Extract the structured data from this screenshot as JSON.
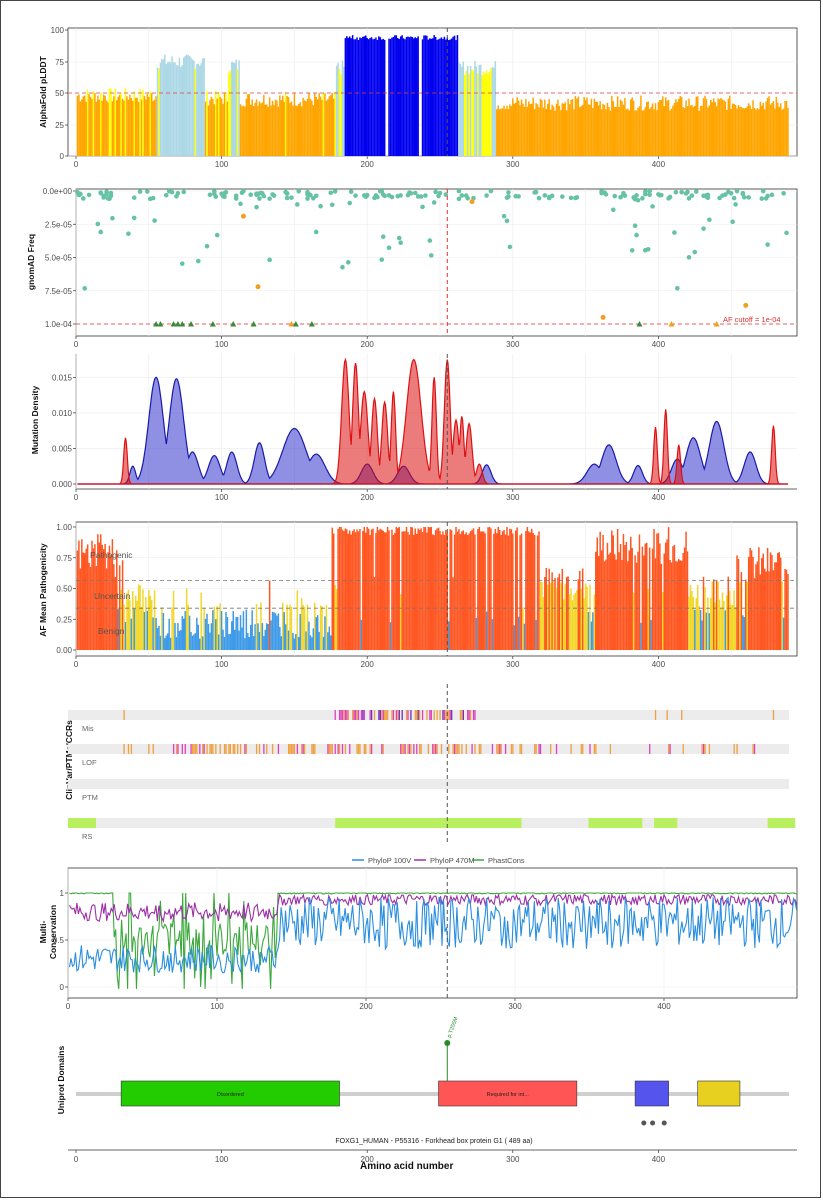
{
  "panels": {
    "plddt": {
      "ylabel": "AlphaFold pLDDT",
      "yticks": [
        "0",
        "25",
        "50",
        "75",
        "100"
      ],
      "ylim": [
        0,
        100
      ],
      "threshold": 50,
      "colors": {
        "very_high": "#0000ee",
        "confident": "#add8e6",
        "low": "#ffff00",
        "very_low": "#ffa500"
      }
    },
    "gnomad": {
      "ylabel": "gnomAD Freq",
      "yticks": [
        "0.0e+00",
        "2.5e-05",
        "5.0e-05",
        "7.5e-05",
        "1.0e-04"
      ],
      "cutoff_label": "AF cutoff = 1e-04",
      "colors": {
        "point": "#66c2a5",
        "highlight": "#f0a020",
        "triangle": "#3a8a3a",
        "cutoff": "#e03030"
      }
    },
    "density": {
      "ylabel": "Mutation Density",
      "yticks": [
        "0.000",
        "0.005",
        "0.010",
        "0.015"
      ],
      "ylim": [
        0,
        0.018
      ],
      "colors": {
        "blue": "#3333cc",
        "red": "#dd1111"
      }
    },
    "pathogenicity": {
      "ylabel": "AF Mean Pathogenicity",
      "yticks": [
        "0.00",
        "0.25",
        "0.50",
        "0.75",
        "1.00"
      ],
      "labels": [
        "Pathogenic",
        "Uncertain",
        "Benign"
      ],
      "thresholds": [
        0.34,
        0.564
      ],
      "colors": {
        "pathogenic": "#ff5722",
        "uncertain": "#f2d72a",
        "benign": "#3f9be8"
      }
    },
    "clinvar": {
      "ylabel": "ClinVar/PTMs/CCRs",
      "rows": [
        "Mis",
        "LOF",
        "PTM",
        "RS"
      ],
      "colors": {
        "orange": "#f0a040",
        "magenta": "#e040c0",
        "purple": "#7030c0",
        "green": "#b8f060"
      }
    },
    "conservation": {
      "ylabel_line1": "Multi-",
      "ylabel_line2": "Conservation",
      "yticks": [
        "0",
        "0.5",
        "1"
      ],
      "legend": [
        "PhyloP 100V",
        "PhyloP 470M",
        "PhastCons"
      ],
      "colors": {
        "phylop100": "#2b8fde",
        "phylop470": "#9b30a8",
        "phastcons": "#3aa83a"
      }
    },
    "domains": {
      "ylabel": "Uniprot Domains",
      "domain_labels": [
        "Disordered",
        "Required for int..."
      ],
      "variant_label": "p.T255M",
      "caption": "FOXG1_HUMAN - P55316 - Forkhead box protein G1 ( 489 aa)",
      "colors": {
        "disordered": "#22cc00",
        "required": "#ff5555",
        "blue_box": "#5555ee",
        "yellow_box": "#e8d020"
      }
    }
  },
  "x_axis": {
    "title": "Amino acid number",
    "ticks": [
      "0",
      "100",
      "200",
      "300",
      "400"
    ],
    "xlim": [
      -5,
      494
    ]
  },
  "chart_data": [
    {
      "type": "bar",
      "title": "",
      "ylabel": "AlphaFold pLDDT",
      "x_range": [
        1,
        489
      ],
      "ylim": [
        0,
        100
      ],
      "segments": [
        {
          "start": 1,
          "end": 55,
          "mean": 48
        },
        {
          "start": 56,
          "end": 88,
          "mean": 75
        },
        {
          "start": 89,
          "end": 104,
          "mean": 46
        },
        {
          "start": 105,
          "end": 112,
          "mean": 72
        },
        {
          "start": 113,
          "end": 178,
          "mean": 45
        },
        {
          "start": 179,
          "end": 184,
          "mean": 70
        },
        {
          "start": 185,
          "end": 262,
          "mean": 93
        },
        {
          "start": 263,
          "end": 288,
          "mean": 70
        },
        {
          "start": 289,
          "end": 489,
          "mean": 42
        }
      ],
      "reference_line": 50
    },
    {
      "type": "scatter",
      "ylabel": "gnomAD Freq",
      "ylim": [
        0.0,
        0.0001
      ],
      "y_reversed": true,
      "cutoff": 0.0001,
      "highlighted": [
        {
          "x": 115,
          "y": 1.9e-05
        },
        {
          "x": 125,
          "y": 7.2e-05
        },
        {
          "x": 272,
          "y": 8e-06
        },
        {
          "x": 362,
          "y": 9.5e-05
        },
        {
          "x": 460,
          "y": 8.6e-05
        }
      ],
      "triangles": [
        {
          "x": 55,
          "y": 0.0001
        },
        {
          "x": 58,
          "y": 0.0001
        },
        {
          "x": 67,
          "y": 0.0001
        },
        {
          "x": 70,
          "y": 0.0001
        },
        {
          "x": 73,
          "y": 0.0001
        },
        {
          "x": 79,
          "y": 0.0001
        },
        {
          "x": 94,
          "y": 0.0001
        },
        {
          "x": 108,
          "y": 0.0001
        },
        {
          "x": 122,
          "y": 0.0001
        },
        {
          "x": 148,
          "y": 0.0001
        },
        {
          "x": 151,
          "y": 0.0001
        },
        {
          "x": 162,
          "y": 0.0001
        },
        {
          "x": 387,
          "y": 0.0001
        },
        {
          "x": 409,
          "y": 0.0001
        },
        {
          "x": 440,
          "y": 0.0001
        }
      ],
      "variant_x": 255
    },
    {
      "type": "area",
      "ylabel": "Mutation Density",
      "ylim": [
        0,
        0.018
      ],
      "series": [
        {
          "peaks": [
            [
              39,
              0.0025,
              2
            ],
            [
              55,
              0.015,
              5
            ],
            [
              69,
              0.0148,
              5
            ],
            [
              80,
              0.0045,
              4
            ],
            [
              95,
              0.004,
              4
            ],
            [
              107,
              0.0045,
              3.5
            ],
            [
              126,
              0.0058,
              3.5
            ],
            [
              150,
              0.0078,
              8
            ],
            [
              165,
              0.0042,
              6
            ],
            [
              200,
              0.0028,
              4
            ],
            [
              225,
              0.0025,
              4
            ],
            [
              282,
              0.0027,
              3
            ],
            [
              356,
              0.0028,
              5
            ],
            [
              366,
              0.0055,
              5
            ],
            [
              386,
              0.0026,
              3
            ],
            [
              413,
              0.0035,
              4
            ],
            [
              424,
              0.0065,
              5
            ],
            [
              440,
              0.0088,
              5
            ],
            [
              463,
              0.0045,
              4
            ]
          ]
        },
        {
          "peaks": [
            [
              34,
              0.0065,
              1.2
            ],
            [
              185,
              0.0175,
              2.5
            ],
            [
              192,
              0.017,
              2
            ],
            [
              198,
              0.013,
              2.5
            ],
            [
              205,
              0.012,
              2
            ],
            [
              212,
              0.0115,
              2
            ],
            [
              218,
              0.013,
              1.5
            ],
            [
              232,
              0.0175,
              5
            ],
            [
              246,
              0.015,
              1.5
            ],
            [
              255,
              0.0175,
              2
            ],
            [
              261,
              0.009,
              2
            ],
            [
              265,
              0.0095,
              1.5
            ],
            [
              270,
              0.0085,
              2
            ],
            [
              277,
              0.0028,
              2
            ],
            [
              398,
              0.008,
              1.2
            ],
            [
              405,
              0.0105,
              1.2
            ],
            [
              414,
              0.0055,
              1.2
            ],
            [
              479,
              0.0082,
              1.2
            ]
          ]
        }
      ]
    },
    {
      "type": "bar",
      "ylabel": "AF Mean Pathogenicity",
      "ylim": [
        0,
        1
      ],
      "thresholds": [
        0.34,
        0.564
      ],
      "segments": [
        {
          "start": 1,
          "end": 32,
          "mean": 0.8
        },
        {
          "start": 33,
          "end": 55,
          "mean": 0.4
        },
        {
          "start": 56,
          "end": 175,
          "mean": 0.24
        },
        {
          "start": 176,
          "end": 318,
          "mean": 0.97
        },
        {
          "start": 319,
          "end": 354,
          "mean": 0.55
        },
        {
          "start": 355,
          "end": 420,
          "mean": 0.85
        },
        {
          "start": 421,
          "end": 452,
          "mean": 0.45
        },
        {
          "start": 453,
          "end": 489,
          "mean": 0.7
        }
      ]
    },
    {
      "type": "line",
      "ylabel": "Multi-Conservation",
      "ylim": [
        0,
        1
      ],
      "series": [
        {
          "name": "PhyloP 100V",
          "segments": [
            {
              "start": 1,
              "end": 140,
              "mean": 0.3
            },
            {
              "start": 141,
              "end": 489,
              "mean": 0.68
            }
          ]
        },
        {
          "name": "PhyloP 470M",
          "segments": [
            {
              "start": 1,
              "end": 140,
              "mean": 0.8
            },
            {
              "start": 141,
              "end": 489,
              "mean": 0.93
            }
          ]
        },
        {
          "name": "PhastCons",
          "segments": [
            {
              "start": 1,
              "end": 30,
              "mean": 1.0
            },
            {
              "start": 31,
              "end": 140,
              "mean": 0.5
            },
            {
              "start": 141,
              "end": 489,
              "mean": 1.0
            }
          ]
        }
      ]
    },
    {
      "type": "table",
      "title": "FOXG1_HUMAN - P55316 - Forkhead box protein G1 ( 489 aa)",
      "domains": [
        {
          "label": "Disordered",
          "start": 31,
          "end": 181
        },
        {
          "label": "Required for int...",
          "start": 249,
          "end": 344
        },
        {
          "label": "",
          "start": 384,
          "end": 407
        },
        {
          "label": "",
          "start": 427,
          "end": 456
        }
      ],
      "variant": {
        "label": "p.T255M",
        "position": 255
      },
      "dots": [
        390,
        396,
        404
      ]
    }
  ]
}
